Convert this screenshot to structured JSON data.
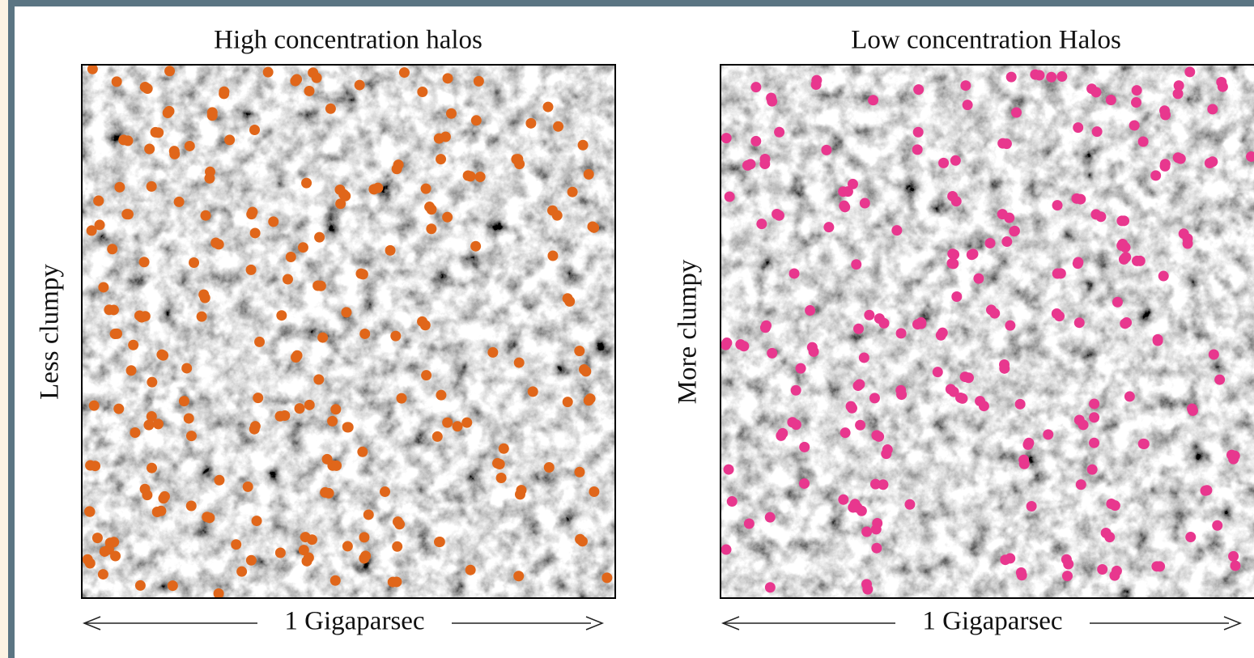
{
  "panels": [
    {
      "title": "High concentration halos",
      "ylabel": "Less clumpy",
      "xlabel": "1 Gigaparsec"
    },
    {
      "title": "Low concentration Halos",
      "ylabel": "More clumpy",
      "xlabel": "1 Gigaparsec"
    }
  ]
}
